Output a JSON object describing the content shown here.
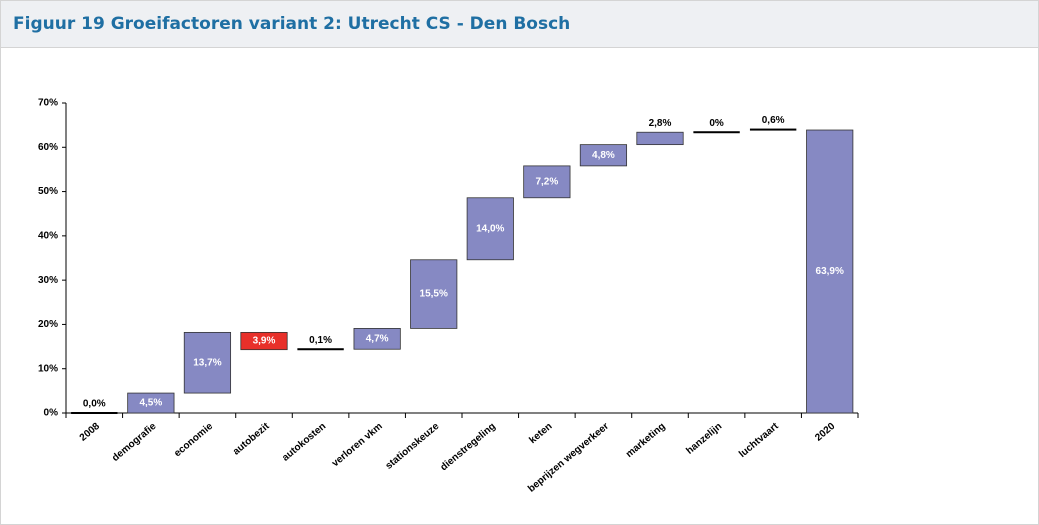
{
  "chart_data": {
    "type": "waterfall",
    "title": "Figuur 19 Groeifactoren variant 2: Utrecht CS - Den Bosch",
    "categories": [
      "2008",
      "demografie",
      "economie",
      "autobezit",
      "autokosten",
      "verloren vkm",
      "stationskeuze",
      "dienstregeling",
      "keten",
      "beprijzen wegverkeer",
      "marketing",
      "hanzelijn",
      "luchtvaart",
      "2020"
    ],
    "values": [
      0,
      4.5,
      13.7,
      -3.9,
      0.1,
      4.7,
      15.5,
      14.0,
      7.2,
      4.8,
      2.8,
      0,
      0.6,
      63.9
    ],
    "value_labels": [
      "0,0%",
      "4,5%",
      "13,7%",
      "3,9%",
      "0,1%",
      "4,7%",
      "15,5%",
      "14,0%",
      "7,2%",
      "4,8%",
      "2,8%",
      "0%",
      "0,6%",
      "63,9%"
    ],
    "measure": [
      "absolute",
      "relative",
      "relative",
      "relative",
      "relative",
      "relative",
      "relative",
      "relative",
      "relative",
      "relative",
      "relative",
      "relative",
      "relative",
      "total"
    ],
    "color": "#8689c3",
    "decrease_color": "#e8302a",
    "ylim": [
      0,
      70
    ],
    "yticks": [
      {
        "value": 0,
        "label": "0%"
      },
      {
        "value": 10,
        "label": "10%"
      },
      {
        "value": 20,
        "label": "20%"
      },
      {
        "value": 30,
        "label": "30%"
      },
      {
        "value": 40,
        "label": "40%"
      },
      {
        "value": 50,
        "label": "50%"
      },
      {
        "value": 60,
        "label": "60%"
      },
      {
        "value": 70,
        "label": "70%"
      }
    ]
  }
}
